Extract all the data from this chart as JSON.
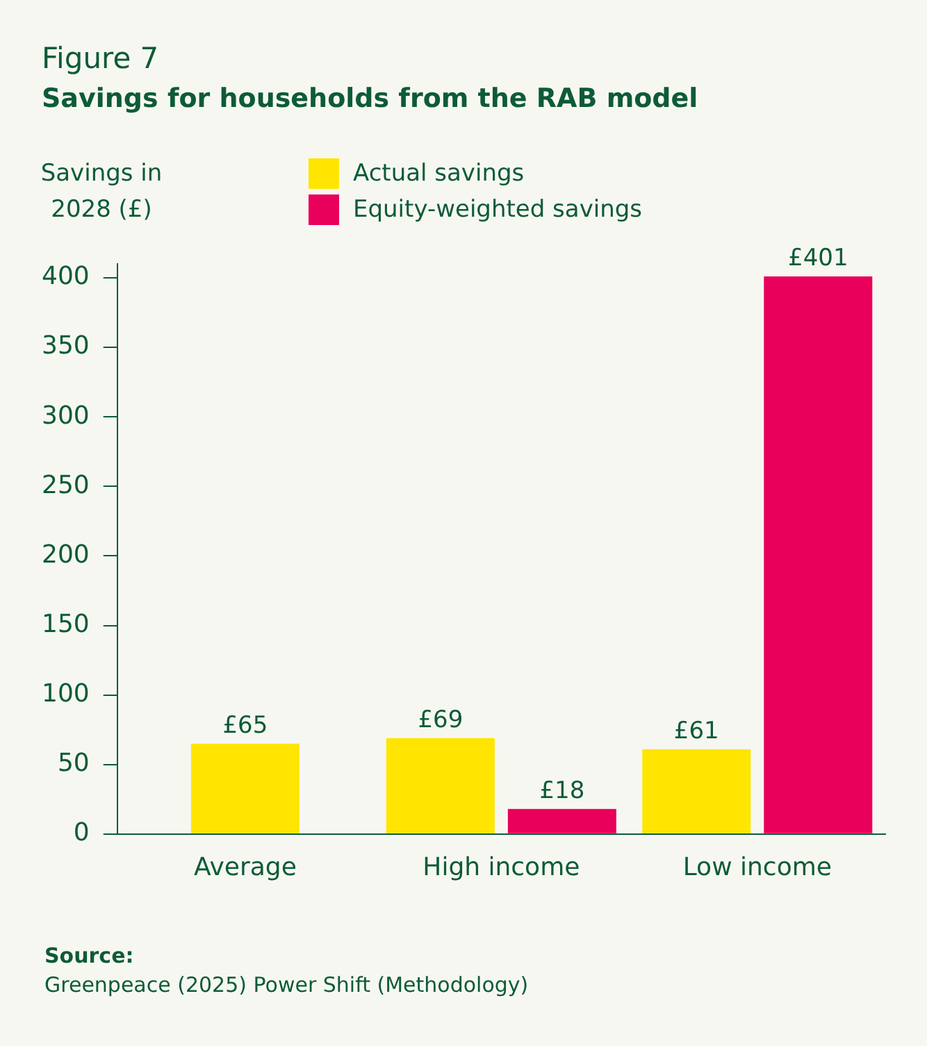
{
  "chart_data": {
    "type": "bar",
    "title": "Figure 7",
    "subtitle": "Savings for households from the RAB model",
    "ylabel": "Savings in 2028 (£)",
    "categories": [
      "Average",
      "High income",
      "Low income"
    ],
    "series": [
      {
        "name": "Actual savings",
        "color": "#ffe500",
        "values": [
          65,
          69,
          61
        ],
        "value_labels": [
          "£65",
          "£69",
          "£61"
        ]
      },
      {
        "name": "Equity-weighted savings",
        "color": "#e8005a",
        "values": [
          null,
          18,
          401
        ],
        "value_labels": [
          null,
          "£18",
          "£401"
        ]
      }
    ],
    "ylim": [
      0,
      410
    ],
    "yticks": [
      0,
      50,
      100,
      150,
      200,
      250,
      300,
      350,
      400
    ],
    "grid": false,
    "legend": "top left",
    "annotations": [
      "Source:",
      "Greenpeace (2025) Power Shift (Methodology)"
    ]
  }
}
